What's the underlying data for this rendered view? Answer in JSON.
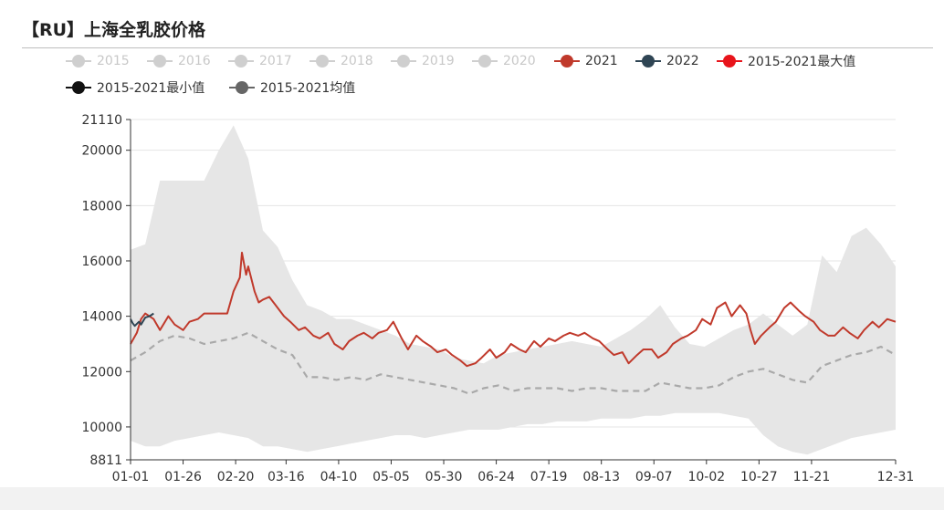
{
  "title": "【RU】上海全乳胶价格",
  "colors": {
    "disabled": "#cfcfcf",
    "s2021": "#c0392b",
    "s2022": "#2f4554",
    "max": "#e8141b",
    "min": "#111111",
    "avg": "#666666",
    "band": "#e6e6e6",
    "avgline": "#a9a9a9",
    "grid": "#e4e4e4",
    "axis": "#333333"
  },
  "chart_data": {
    "type": "line",
    "title": "【RU】上海全乳胶价格",
    "xlabel": "",
    "ylabel": "",
    "ylim": [
      8811,
      21110
    ],
    "y_ticks": [
      8811,
      10000,
      12000,
      14000,
      16000,
      18000,
      20000,
      21110
    ],
    "x_ticks": [
      "01-01",
      "01-26",
      "02-20",
      "03-16",
      "04-10",
      "05-05",
      "05-30",
      "06-24",
      "07-19",
      "08-13",
      "09-07",
      "10-02",
      "10-27",
      "11-21",
      "12-31"
    ],
    "grid": "horizontal",
    "legend": {
      "placement": "top-left",
      "items": [
        {
          "name": "2015",
          "active": false
        },
        {
          "name": "2016",
          "active": false
        },
        {
          "name": "2017",
          "active": false
        },
        {
          "name": "2018",
          "active": false
        },
        {
          "name": "2019",
          "active": false
        },
        {
          "name": "2020",
          "active": false
        },
        {
          "name": "2021",
          "active": true
        },
        {
          "name": "2022",
          "active": true
        },
        {
          "name": "2015-2021最大值",
          "active": true
        },
        {
          "name": "2015-2021最小值",
          "active": true
        },
        {
          "name": "2015-2021均值",
          "active": true
        }
      ]
    },
    "band": {
      "description_series": [
        "2015-2021最大值",
        "2015-2021最小值"
      ],
      "x": [
        "01-01",
        "01-08",
        "01-15",
        "01-22",
        "01-29",
        "02-05",
        "02-12",
        "02-19",
        "02-26",
        "03-05",
        "03-12",
        "03-19",
        "03-26",
        "04-02",
        "04-09",
        "04-16",
        "04-23",
        "04-30",
        "05-07",
        "05-14",
        "05-21",
        "05-28",
        "06-04",
        "06-11",
        "06-18",
        "06-25",
        "07-02",
        "07-09",
        "07-16",
        "07-23",
        "07-30",
        "08-06",
        "08-13",
        "08-20",
        "08-27",
        "09-03",
        "09-10",
        "09-17",
        "09-24",
        "10-01",
        "10-08",
        "10-15",
        "10-22",
        "10-29",
        "11-05",
        "11-12",
        "11-19",
        "11-26",
        "12-03",
        "12-10",
        "12-17",
        "12-24",
        "12-31"
      ],
      "max": [
        16400,
        16600,
        18900,
        18900,
        18900,
        18900,
        20000,
        20900,
        19700,
        17100,
        16500,
        15300,
        14400,
        14200,
        13900,
        13900,
        13700,
        13500,
        13300,
        13000,
        12900,
        12800,
        12500,
        12400,
        12300,
        12600,
        12700,
        12800,
        12900,
        13000,
        13100,
        13000,
        12900,
        13200,
        13500,
        13900,
        14400,
        13600,
        13000,
        12900,
        13200,
        13500,
        13700,
        14100,
        13700,
        13300,
        13700,
        16200,
        15600,
        16900,
        17200,
        16600,
        15800
      ],
      "min": [
        9500,
        9300,
        9300,
        9500,
        9600,
        9700,
        9800,
        9700,
        9600,
        9300,
        9300,
        9200,
        9100,
        9200,
        9300,
        9400,
        9500,
        9600,
        9700,
        9700,
        9600,
        9700,
        9800,
        9900,
        9900,
        9900,
        10000,
        10100,
        10100,
        10200,
        10200,
        10200,
        10300,
        10300,
        10300,
        10400,
        10400,
        10500,
        10500,
        10500,
        10500,
        10400,
        10300,
        9700,
        9300,
        9100,
        9000,
        9200,
        9400,
        9600,
        9700,
        9800,
        9900
      ]
    },
    "series": [
      {
        "name": "2021",
        "x": [
          "01-01",
          "01-04",
          "01-06",
          "01-08",
          "01-12",
          "01-15",
          "01-19",
          "01-22",
          "01-26",
          "01-29",
          "02-02",
          "02-05",
          "02-09",
          "02-12",
          "02-16",
          "02-19",
          "02-22",
          "02-23",
          "02-25",
          "02-26",
          "03-01",
          "03-03",
          "03-05",
          "03-08",
          "03-11",
          "03-15",
          "03-18",
          "03-22",
          "03-25",
          "03-29",
          "04-01",
          "04-05",
          "04-08",
          "04-12",
          "04-15",
          "04-19",
          "04-22",
          "04-26",
          "04-29",
          "05-03",
          "05-06",
          "05-10",
          "05-13",
          "05-17",
          "05-20",
          "05-24",
          "05-27",
          "05-31",
          "06-03",
          "06-07",
          "06-10",
          "06-14",
          "06-17",
          "06-21",
          "06-24",
          "06-28",
          "07-01",
          "07-05",
          "07-08",
          "07-12",
          "07-15",
          "07-19",
          "07-22",
          "07-26",
          "07-29",
          "08-02",
          "08-05",
          "08-09",
          "08-12",
          "08-16",
          "08-19",
          "08-23",
          "08-26",
          "08-30",
          "09-02",
          "09-06",
          "09-09",
          "09-13",
          "09-16",
          "09-20",
          "09-23",
          "09-27",
          "09-30",
          "10-04",
          "10-07",
          "10-11",
          "10-14",
          "10-18",
          "10-21",
          "10-23",
          "10-25",
          "10-28",
          "11-01",
          "11-04",
          "11-08",
          "11-11",
          "11-15",
          "11-18",
          "11-22",
          "11-25",
          "11-29",
          "12-02",
          "12-06",
          "12-09",
          "12-13",
          "12-16",
          "12-20",
          "12-23",
          "12-27",
          "12-31"
        ],
        "values": [
          13000,
          13400,
          13900,
          14100,
          13900,
          13500,
          14000,
          13700,
          13500,
          13800,
          13900,
          14100,
          14100,
          14100,
          14100,
          14900,
          15400,
          16300,
          15500,
          15800,
          14900,
          14500,
          14600,
          14700,
          14400,
          14000,
          13800,
          13500,
          13600,
          13300,
          13200,
          13400,
          13000,
          12800,
          13100,
          13300,
          13400,
          13200,
          13400,
          13500,
          13800,
          13200,
          12800,
          13300,
          13100,
          12900,
          12700,
          12800,
          12600,
          12400,
          12200,
          12300,
          12500,
          12800,
          12500,
          12700,
          13000,
          12800,
          12700,
          13100,
          12900,
          13200,
          13100,
          13300,
          13400,
          13300,
          13400,
          13200,
          13100,
          12800,
          12600,
          12700,
          12300,
          12600,
          12800,
          12800,
          12500,
          12700,
          13000,
          13200,
          13300,
          13500,
          13900,
          13700,
          14300,
          14500,
          14000,
          14400,
          14100,
          13500,
          13000,
          13300,
          13600,
          13800,
          14300,
          14500,
          14200,
          14000,
          13800,
          13500,
          13300,
          13300,
          13600,
          13400,
          13200,
          13500,
          13800,
          13600,
          13900,
          13800
        ]
      },
      {
        "name": "2022",
        "x": [
          "01-01",
          "01-02",
          "01-03",
          "01-05",
          "01-06",
          "01-08",
          "01-10",
          "01-11",
          "01-12"
        ],
        "values": [
          13900,
          13750,
          13650,
          13800,
          13700,
          13950,
          14000,
          14050,
          14100
        ]
      },
      {
        "name": "2015-2021均值",
        "x": [
          "01-01",
          "01-08",
          "01-15",
          "01-22",
          "01-29",
          "02-05",
          "02-12",
          "02-19",
          "02-26",
          "03-05",
          "03-12",
          "03-19",
          "03-26",
          "04-02",
          "04-09",
          "04-16",
          "04-23",
          "04-30",
          "05-07",
          "05-14",
          "05-21",
          "05-28",
          "06-04",
          "06-11",
          "06-18",
          "06-25",
          "07-02",
          "07-09",
          "07-16",
          "07-23",
          "07-30",
          "08-06",
          "08-13",
          "08-20",
          "08-27",
          "09-03",
          "09-10",
          "09-17",
          "09-24",
          "10-01",
          "10-08",
          "10-15",
          "10-22",
          "10-29",
          "11-05",
          "11-12",
          "11-19",
          "11-26",
          "12-03",
          "12-10",
          "12-17",
          "12-24",
          "12-31"
        ],
        "values": [
          12400,
          12700,
          13100,
          13300,
          13200,
          13000,
          13100,
          13200,
          13400,
          13100,
          12800,
          12600,
          11800,
          11800,
          11700,
          11800,
          11700,
          11900,
          11800,
          11700,
          11600,
          11500,
          11400,
          11200,
          11400,
          11500,
          11300,
          11400,
          11400,
          11400,
          11300,
          11400,
          11400,
          11300,
          11300,
          11300,
          11600,
          11500,
          11400,
          11400,
          11500,
          11800,
          12000,
          12100,
          11900,
          11700,
          11600,
          12200,
          12400,
          12600,
          12700,
          12900,
          12600
        ]
      }
    ]
  }
}
